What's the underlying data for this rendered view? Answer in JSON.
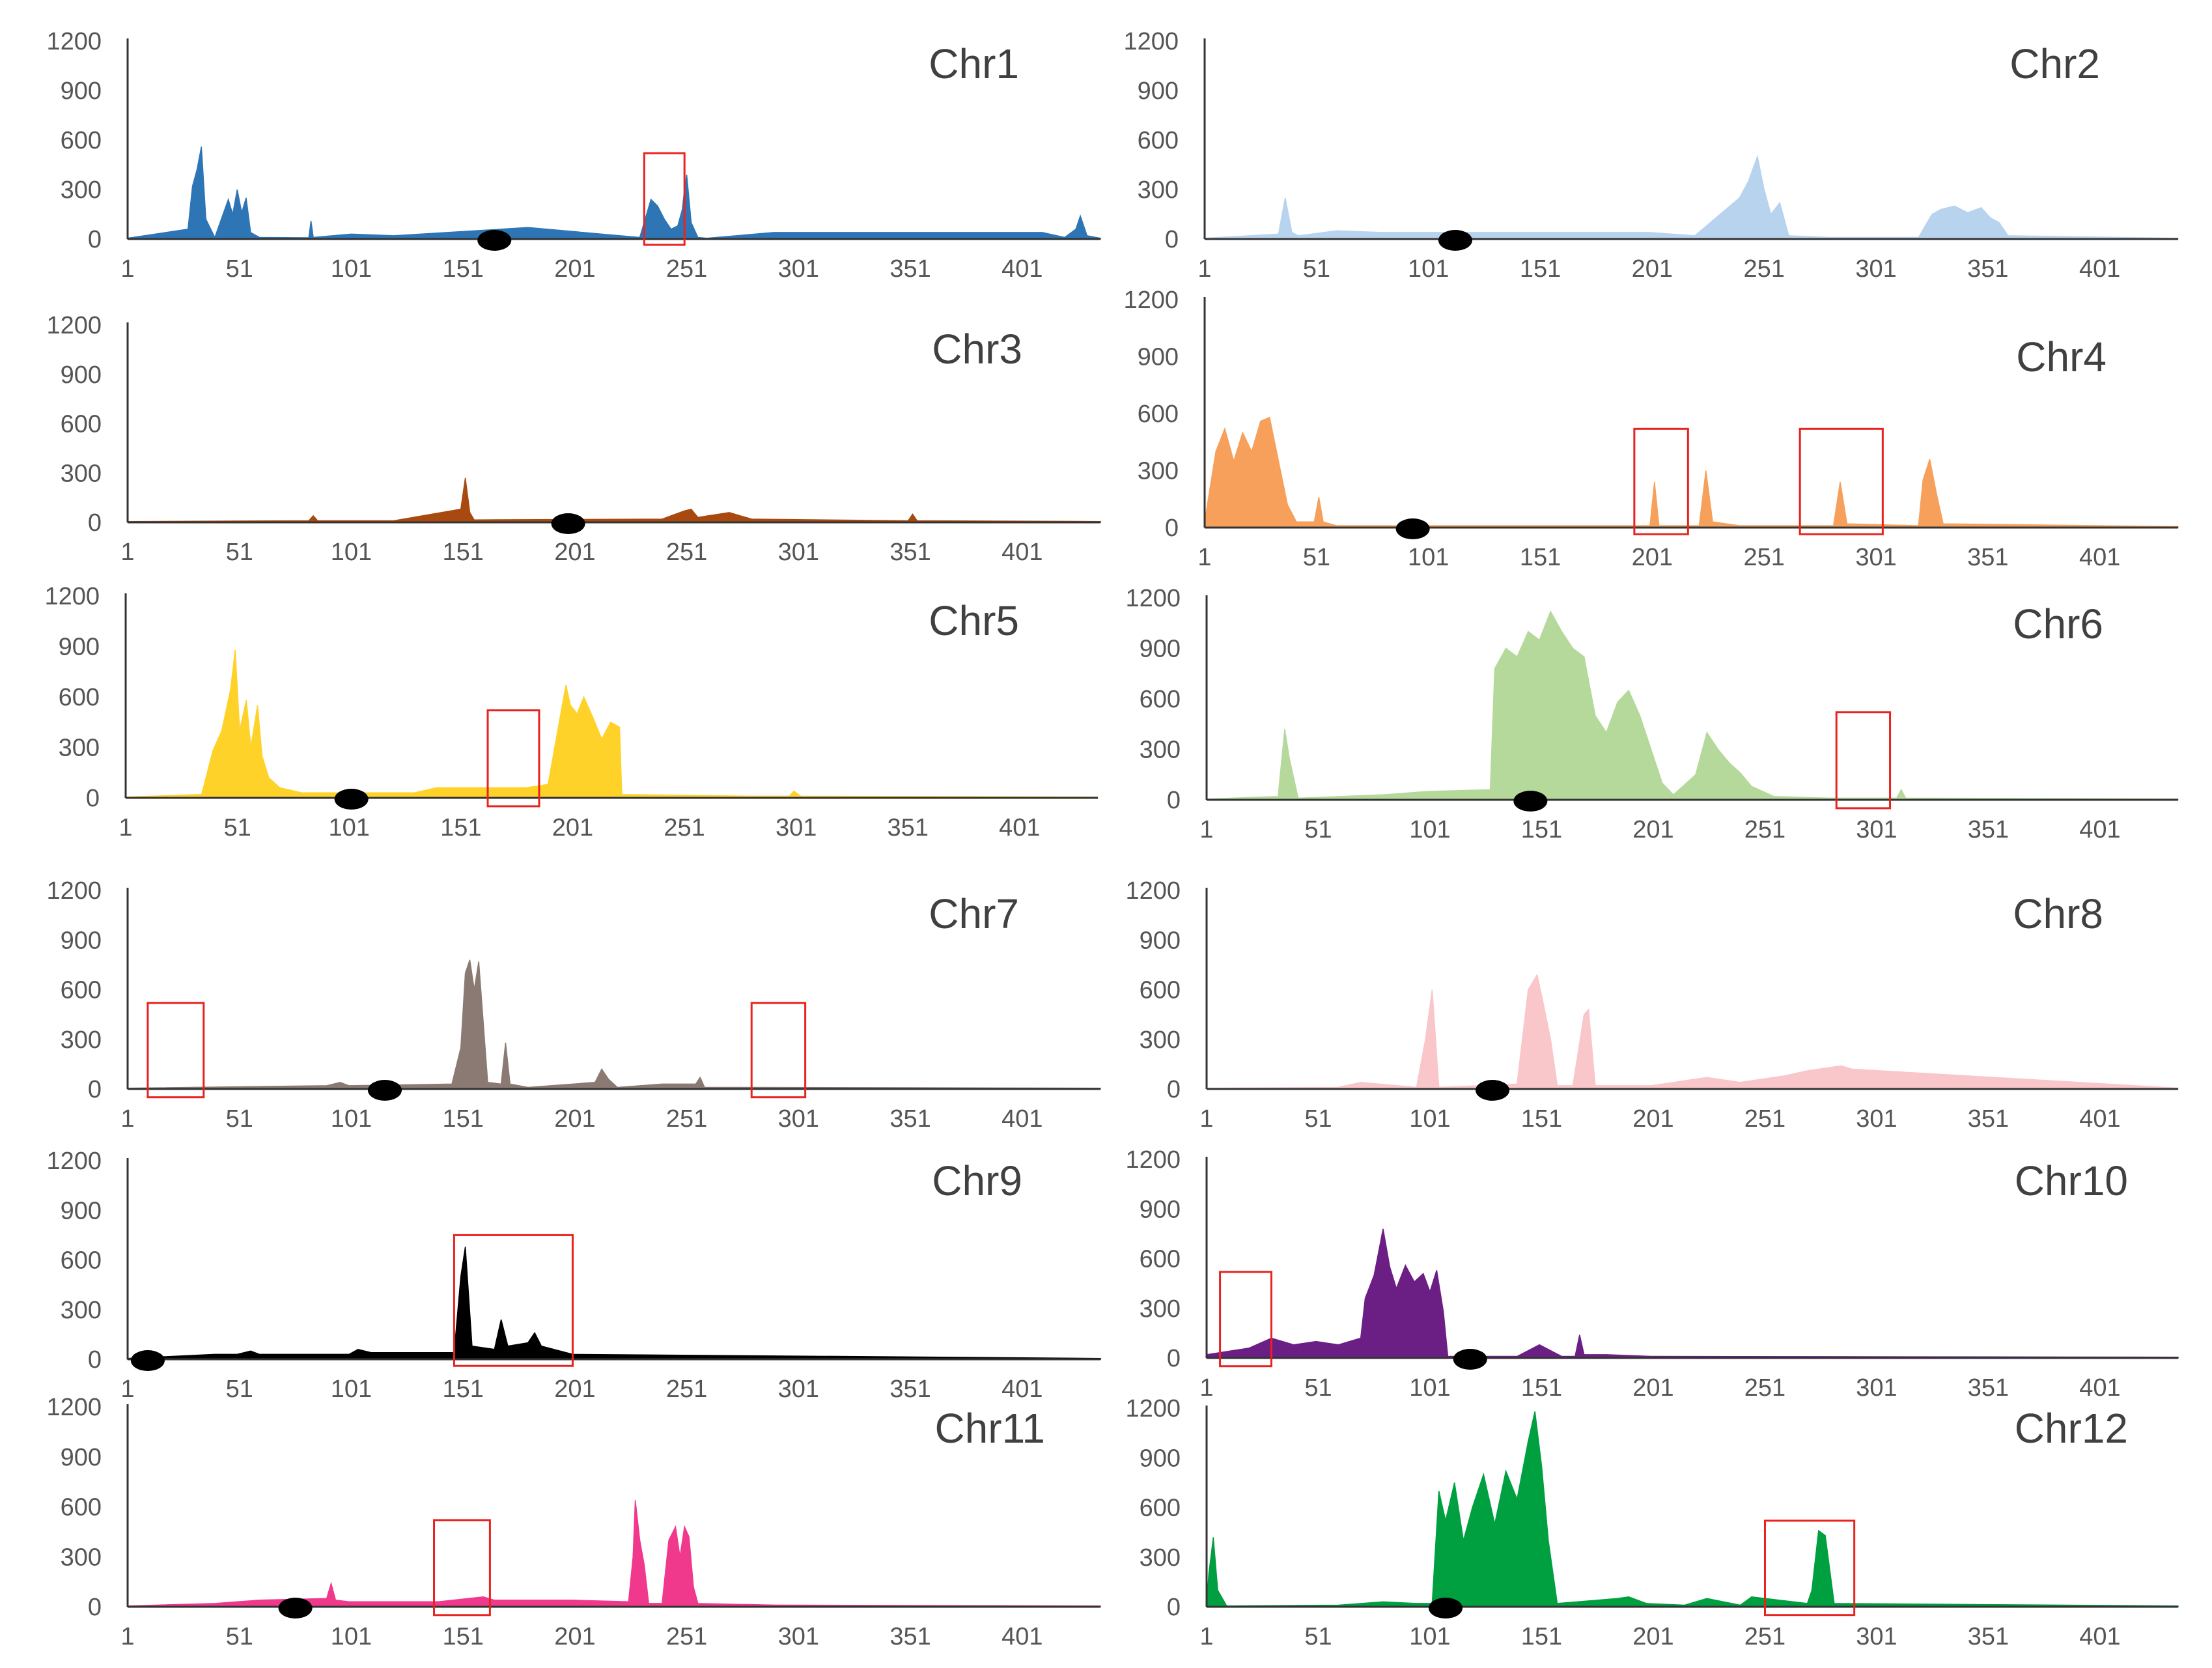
{
  "chart_data": [
    {
      "type": "area",
      "title": "Chr1",
      "color": "#2E75B6",
      "yticks": [
        0,
        300,
        600,
        900,
        1200
      ],
      "ylim": [
        0,
        1200
      ],
      "xticks": [
        1,
        51,
        101,
        151,
        201,
        251,
        301,
        351,
        401
      ],
      "xlim": [
        1,
        436
      ],
      "centromere": 165,
      "highlight_boxes": [
        {
          "x0": 232,
          "x1": 250,
          "y0": -35,
          "y1": 520
        }
      ],
      "x": [
        1,
        28,
        30,
        32,
        34,
        36,
        40,
        46,
        48,
        50,
        52,
        54,
        56,
        60,
        82,
        83,
        84,
        101,
        120,
        180,
        230,
        235,
        238,
        241,
        244,
        247,
        249,
        250,
        251,
        253,
        256,
        260,
        290,
        410,
        420,
        425,
        427,
        430,
        436
      ],
      "values": [
        5,
        60,
        320,
        420,
        560,
        120,
        10,
        240,
        150,
        300,
        160,
        250,
        40,
        10,
        8,
        110,
        10,
        30,
        20,
        70,
        10,
        240,
        200,
        120,
        60,
        80,
        180,
        300,
        390,
        100,
        10,
        5,
        40,
        40,
        10,
        60,
        140,
        20,
        5
      ]
    },
    {
      "type": "area",
      "title": "Chr2",
      "color": "#B8D3EE",
      "yticks": [
        0,
        300,
        600,
        900,
        1200
      ],
      "ylim": [
        0,
        1200
      ],
      "xticks": [
        1,
        51,
        101,
        151,
        201,
        251,
        301,
        351,
        401
      ],
      "xlim": [
        1,
        436
      ],
      "centromere": 113,
      "highlight_boxes": [],
      "x": [
        1,
        34,
        37,
        40,
        43,
        60,
        80,
        200,
        220,
        240,
        244,
        248,
        251,
        254,
        258,
        262,
        280,
        320,
        326,
        330,
        336,
        342,
        348,
        352,
        356,
        360,
        436
      ],
      "values": [
        5,
        30,
        250,
        40,
        20,
        50,
        40,
        40,
        20,
        250,
        350,
        500,
        300,
        150,
        220,
        20,
        10,
        10,
        150,
        180,
        200,
        160,
        190,
        130,
        100,
        20,
        5
      ]
    },
    {
      "type": "area",
      "title": "Chr3",
      "color": "#A84A0F",
      "yticks": [
        0,
        300,
        600,
        900,
        1200
      ],
      "ylim": [
        0,
        1200
      ],
      "xticks": [
        1,
        51,
        101,
        151,
        201,
        251,
        301,
        351,
        401
      ],
      "xlim": [
        1,
        436
      ],
      "centromere": 198,
      "highlight_boxes": [],
      "x": [
        1,
        82,
        84,
        86,
        120,
        150,
        152,
        154,
        156,
        240,
        250,
        253,
        256,
        270,
        280,
        350,
        352,
        354,
        436
      ],
      "values": [
        5,
        10,
        40,
        10,
        10,
        80,
        270,
        60,
        15,
        20,
        70,
        80,
        30,
        60,
        20,
        10,
        50,
        10,
        5
      ]
    },
    {
      "type": "area",
      "title": "Chr4",
      "color": "#F6A05B",
      "yticks": [
        0,
        300,
        600,
        900,
        1200
      ],
      "ylim": [
        0,
        1200
      ],
      "xticks": [
        1,
        51,
        101,
        151,
        201,
        251,
        301,
        351,
        401
      ],
      "xlim": [
        1,
        436
      ],
      "centromere": 94,
      "highlight_boxes": [
        {
          "x0": 193,
          "x1": 217,
          "y0": -35,
          "y1": 520
        },
        {
          "x0": 267,
          "x1": 304,
          "y0": -35,
          "y1": 520
        }
      ],
      "x": [
        1,
        6,
        10,
        14,
        18,
        22,
        26,
        30,
        34,
        38,
        42,
        50,
        52,
        54,
        60,
        200,
        202,
        204,
        222,
        225,
        228,
        240,
        282,
        285,
        288,
        320,
        322,
        325,
        328,
        331,
        436
      ],
      "values": [
        30,
        400,
        520,
        350,
        500,
        400,
        560,
        580,
        350,
        120,
        30,
        30,
        160,
        30,
        10,
        10,
        240,
        10,
        10,
        300,
        30,
        10,
        10,
        240,
        20,
        10,
        250,
        360,
        180,
        20,
        5
      ]
    },
    {
      "type": "area",
      "title": "Chr5",
      "color": "#FFD22A",
      "yticks": [
        0,
        300,
        600,
        900,
        1200
      ],
      "ylim": [
        0,
        1200
      ],
      "xticks": [
        1,
        51,
        101,
        151,
        201,
        251,
        301,
        351,
        401
      ],
      "xlim": [
        1,
        436
      ],
      "centromere": 102,
      "highlight_boxes": [
        {
          "x0": 163,
          "x1": 186,
          "y0": -50,
          "y1": 520
        }
      ],
      "x": [
        1,
        35,
        40,
        44,
        48,
        50,
        52,
        55,
        57,
        60,
        62,
        65,
        70,
        80,
        130,
        140,
        180,
        190,
        195,
        198,
        200,
        203,
        206,
        210,
        214,
        218,
        222,
        223,
        280,
        298,
        300,
        303,
        436
      ],
      "values": [
        5,
        20,
        280,
        400,
        650,
        880,
        400,
        580,
        300,
        550,
        250,
        120,
        60,
        30,
        30,
        60,
        60,
        80,
        450,
        670,
        550,
        500,
        600,
        480,
        350,
        450,
        420,
        20,
        10,
        10,
        40,
        10,
        5
      ]
    },
    {
      "type": "area",
      "title": "Chr6",
      "color": "#B5D99B",
      "yticks": [
        0,
        300,
        600,
        900,
        1200
      ],
      "ylim": [
        0,
        1200
      ],
      "xticks": [
        1,
        51,
        101,
        151,
        201,
        251,
        301,
        351,
        401
      ],
      "xlim": [
        1,
        436
      ],
      "centromere": 146,
      "highlight_boxes": [
        {
          "x0": 283,
          "x1": 307,
          "y0": -50,
          "y1": 520
        }
      ],
      "x": [
        1,
        33,
        36,
        38,
        42,
        80,
        100,
        128,
        130,
        135,
        140,
        145,
        150,
        155,
        160,
        165,
        170,
        175,
        180,
        185,
        190,
        195,
        200,
        205,
        210,
        220,
        225,
        230,
        235,
        240,
        245,
        255,
        280,
        310,
        312,
        314,
        436
      ],
      "values": [
        5,
        20,
        420,
        250,
        10,
        30,
        50,
        60,
        780,
        900,
        850,
        1000,
        950,
        1120,
        1000,
        900,
        850,
        500,
        400,
        580,
        650,
        500,
        300,
        100,
        30,
        150,
        400,
        300,
        220,
        160,
        80,
        20,
        10,
        10,
        60,
        10,
        5
      ]
    },
    {
      "type": "area",
      "title": "Chr7",
      "color": "#8A7A73",
      "yticks": [
        0,
        300,
        600,
        900,
        1200
      ],
      "ylim": [
        0,
        1200
      ],
      "xticks": [
        1,
        51,
        101,
        151,
        201,
        251,
        301,
        351,
        401
      ],
      "xlim": [
        1,
        436
      ],
      "centromere": 116,
      "highlight_boxes": [
        {
          "x0": 10,
          "x1": 35,
          "y0": -50,
          "y1": 520
        },
        {
          "x0": 280,
          "x1": 304,
          "y0": -50,
          "y1": 520
        }
      ],
      "x": [
        1,
        90,
        96,
        100,
        146,
        150,
        152,
        154,
        156,
        158,
        162,
        168,
        170,
        172,
        180,
        210,
        213,
        216,
        220,
        240,
        255,
        257,
        259,
        280,
        436
      ],
      "values": [
        5,
        20,
        40,
        20,
        30,
        250,
        700,
        780,
        600,
        770,
        40,
        30,
        280,
        30,
        10,
        40,
        120,
        60,
        10,
        30,
        30,
        70,
        10,
        10,
        5
      ]
    },
    {
      "type": "area",
      "title": "Chr8",
      "color": "#F9C6C9",
      "yticks": [
        0,
        300,
        600,
        900,
        1200
      ],
      "ylim": [
        0,
        1200
      ],
      "xticks": [
        1,
        51,
        101,
        151,
        201,
        251,
        301,
        351,
        401
      ],
      "xlim": [
        1,
        436
      ],
      "centromere": 129,
      "highlight_boxes": [],
      "x": [
        1,
        60,
        70,
        95,
        99,
        102,
        105,
        140,
        145,
        149,
        152,
        155,
        158,
        165,
        170,
        172,
        175,
        200,
        225,
        240,
        260,
        270,
        280,
        285,
        290,
        436
      ],
      "values": [
        5,
        10,
        40,
        10,
        300,
        600,
        10,
        30,
        600,
        690,
        500,
        300,
        20,
        20,
        450,
        480,
        20,
        20,
        70,
        40,
        80,
        110,
        130,
        140,
        120,
        5
      ]
    },
    {
      "type": "area",
      "title": "Chr9",
      "color": "#000000",
      "yticks": [
        0,
        300,
        600,
        900,
        1200
      ],
      "ylim": [
        0,
        1200
      ],
      "xticks": [
        1,
        51,
        101,
        151,
        201,
        251,
        301,
        351,
        401
      ],
      "xlim": [
        1,
        436
      ],
      "centromere": 10,
      "highlight_boxes": [
        {
          "x0": 147,
          "x1": 200,
          "y0": -40,
          "y1": 750
        }
      ],
      "x": [
        1,
        40,
        50,
        56,
        60,
        100,
        104,
        110,
        120,
        147,
        150,
        152,
        155,
        165,
        168,
        171,
        180,
        183,
        186,
        200,
        436
      ],
      "values": [
        5,
        30,
        30,
        50,
        30,
        30,
        60,
        40,
        40,
        40,
        500,
        680,
        80,
        60,
        240,
        80,
        100,
        160,
        80,
        30,
        5
      ]
    },
    {
      "type": "area",
      "title": "Chr10",
      "color": "#6B1E84",
      "yticks": [
        0,
        300,
        600,
        900,
        1200
      ],
      "ylim": [
        0,
        1200
      ],
      "xticks": [
        1,
        51,
        101,
        151,
        201,
        251,
        301,
        351,
        401
      ],
      "xlim": [
        1,
        436
      ],
      "centromere": 119,
      "highlight_boxes": [
        {
          "x0": 7,
          "x1": 30,
          "y0": -50,
          "y1": 520
        }
      ],
      "x": [
        1,
        20,
        30,
        40,
        50,
        60,
        70,
        72,
        76,
        80,
        83,
        86,
        90,
        94,
        98,
        101,
        104,
        107,
        109,
        140,
        150,
        160,
        166,
        168,
        170,
        180,
        200,
        436
      ],
      "values": [
        20,
        60,
        120,
        80,
        100,
        80,
        120,
        360,
        500,
        780,
        550,
        420,
        560,
        460,
        510,
        400,
        530,
        280,
        10,
        10,
        80,
        10,
        10,
        140,
        20,
        20,
        10,
        5
      ]
    },
    {
      "type": "area",
      "title": "Chr11",
      "color": "#F0388C",
      "yticks": [
        0,
        300,
        600,
        900,
        1200
      ],
      "ylim": [
        0,
        1200
      ],
      "xticks": [
        1,
        51,
        101,
        151,
        201,
        251,
        301,
        351,
        401
      ],
      "xlim": [
        1,
        436
      ],
      "centromere": 76,
      "highlight_boxes": [
        {
          "x0": 138,
          "x1": 163,
          "y0": -50,
          "y1": 520
        }
      ],
      "x": [
        1,
        40,
        60,
        90,
        92,
        94,
        100,
        140,
        160,
        165,
        200,
        225,
        227,
        228,
        230,
        232,
        234,
        240,
        243,
        246,
        248,
        250,
        252,
        254,
        256,
        290,
        436
      ],
      "values": [
        5,
        20,
        40,
        50,
        140,
        40,
        30,
        30,
        60,
        40,
        40,
        30,
        300,
        640,
        400,
        250,
        20,
        20,
        400,
        480,
        300,
        480,
        420,
        120,
        20,
        10,
        5
      ]
    },
    {
      "type": "area",
      "title": "Chr12",
      "color": "#00A040",
      "yticks": [
        0,
        300,
        600,
        900,
        1200
      ],
      "ylim": [
        0,
        1200
      ],
      "xticks": [
        1,
        51,
        101,
        151,
        201,
        251,
        301,
        351,
        401
      ],
      "xlim": [
        1,
        436
      ],
      "centromere": 108,
      "highlight_boxes": [
        {
          "x0": 251,
          "x1": 291,
          "y0": -50,
          "y1": 520
        }
      ],
      "x": [
        1,
        2,
        4,
        6,
        10,
        60,
        80,
        95,
        102,
        105,
        108,
        112,
        116,
        120,
        125,
        130,
        135,
        140,
        145,
        148,
        151,
        154,
        158,
        185,
        190,
        198,
        215,
        225,
        240,
        245,
        270,
        272,
        275,
        278,
        282,
        436
      ],
      "values": [
        10,
        200,
        420,
        100,
        5,
        10,
        30,
        20,
        20,
        700,
        520,
        750,
        400,
        600,
        800,
        500,
        820,
        650,
        1000,
        1180,
        850,
        400,
        20,
        50,
        60,
        20,
        10,
        50,
        10,
        60,
        20,
        100,
        460,
        430,
        20,
        5
      ]
    }
  ]
}
